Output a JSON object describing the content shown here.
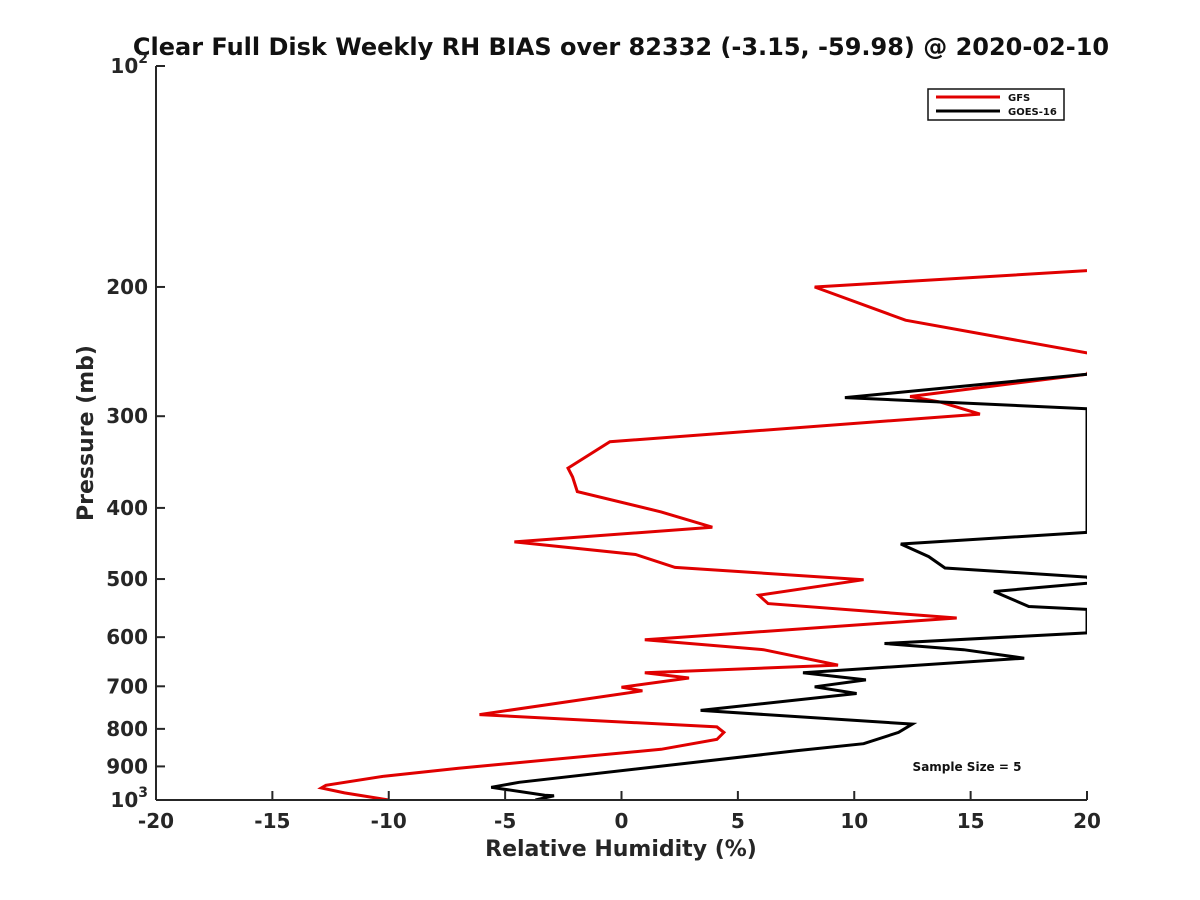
{
  "chart_data": {
    "type": "line",
    "title": "Clear Full Disk Weekly RH BIAS over 82332 (-3.15, -59.98) @ 2020-02-10",
    "xlabel": "Relative Humidity (%)",
    "ylabel": "Pressure (mb)",
    "xlim": [
      -20,
      20
    ],
    "ylim": [
      100,
      1000
    ],
    "yscale": "log",
    "y_reversed": true,
    "xticks": [
      -20,
      -15,
      -10,
      -5,
      0,
      5,
      10,
      15,
      20
    ],
    "xtick_labels": [
      "-20",
      "-15",
      "-10",
      "-5",
      "0",
      "5",
      "10",
      "15",
      "20"
    ],
    "yticks": [
      100,
      200,
      300,
      400,
      500,
      600,
      700,
      800,
      900,
      1000
    ],
    "ytick_labels": [
      {
        "base": "10",
        "exp": "2"
      },
      {
        "base": "200",
        "exp": ""
      },
      {
        "base": "300",
        "exp": ""
      },
      {
        "base": "400",
        "exp": ""
      },
      {
        "base": "500",
        "exp": ""
      },
      {
        "base": "600",
        "exp": ""
      },
      {
        "base": "700",
        "exp": ""
      },
      {
        "base": "800",
        "exp": ""
      },
      {
        "base": "900",
        "exp": ""
      },
      {
        "base": "10",
        "exp": "3"
      }
    ],
    "grid": false,
    "legend_position": "top-right",
    "annotation": "Sample Size = 5",
    "series": [
      {
        "name": "GFS",
        "color": "#e00000",
        "points": [
          [
            20,
            190
          ],
          [
            8.3,
            200
          ],
          [
            12.2,
            222
          ],
          [
            20,
            246
          ],
          [
            20.5,
            248
          ],
          [
            20,
            263
          ],
          [
            12.4,
            282
          ],
          [
            13.7,
            287
          ],
          [
            15.4,
            298
          ],
          [
            -0.5,
            325
          ],
          [
            -2.3,
            353
          ],
          [
            -2.1,
            363
          ],
          [
            -1.9,
            380
          ],
          [
            1.7,
            405
          ],
          [
            3.9,
            425
          ],
          [
            -4.6,
            445
          ],
          [
            0.6,
            463
          ],
          [
            2.3,
            482
          ],
          [
            10.4,
            501
          ],
          [
            5.9,
            526
          ],
          [
            6.3,
            540
          ],
          [
            14.4,
            565
          ],
          [
            1.0,
            605
          ],
          [
            6.1,
            624
          ],
          [
            9.3,
            655
          ],
          [
            1.0,
            671
          ],
          [
            2.9,
            682
          ],
          [
            0.0,
            702
          ],
          [
            0.9,
            710
          ],
          [
            -6.1,
            765
          ],
          [
            4.1,
            795
          ],
          [
            4.4,
            809
          ],
          [
            4.1,
            827
          ],
          [
            1.7,
            853
          ],
          [
            -7.0,
            905
          ],
          [
            -10.2,
            928
          ],
          [
            -12.7,
            955
          ],
          [
            -12.9,
            963
          ],
          [
            -11.9,
            978
          ],
          [
            -10.0,
            1000
          ]
        ]
      },
      {
        "name": "GOES-16",
        "color": "#000000",
        "points": [
          [
            20,
            263
          ],
          [
            9.6,
            283
          ],
          [
            20,
            293
          ],
          [
            20,
            432
          ],
          [
            12.0,
            448
          ],
          [
            13.2,
            466
          ],
          [
            13.9,
            483
          ],
          [
            20,
            497
          ],
          [
            20.2,
            506
          ],
          [
            16.0,
            520
          ],
          [
            17.5,
            545
          ],
          [
            20,
            550
          ],
          [
            20,
            592
          ],
          [
            11.3,
            612
          ],
          [
            14.7,
            624
          ],
          [
            17.3,
            641
          ],
          [
            7.8,
            671
          ],
          [
            10.5,
            686
          ],
          [
            8.3,
            701
          ],
          [
            10.1,
            716
          ],
          [
            3.4,
            755
          ],
          [
            12.5,
            788
          ],
          [
            11.9,
            809
          ],
          [
            10.4,
            838
          ],
          [
            7.5,
            857
          ],
          [
            -4.4,
            946
          ],
          [
            -5.6,
            961
          ],
          [
            -3.3,
            985
          ],
          [
            -2.9,
            987
          ],
          [
            -3.7,
            1000
          ]
        ]
      }
    ]
  }
}
